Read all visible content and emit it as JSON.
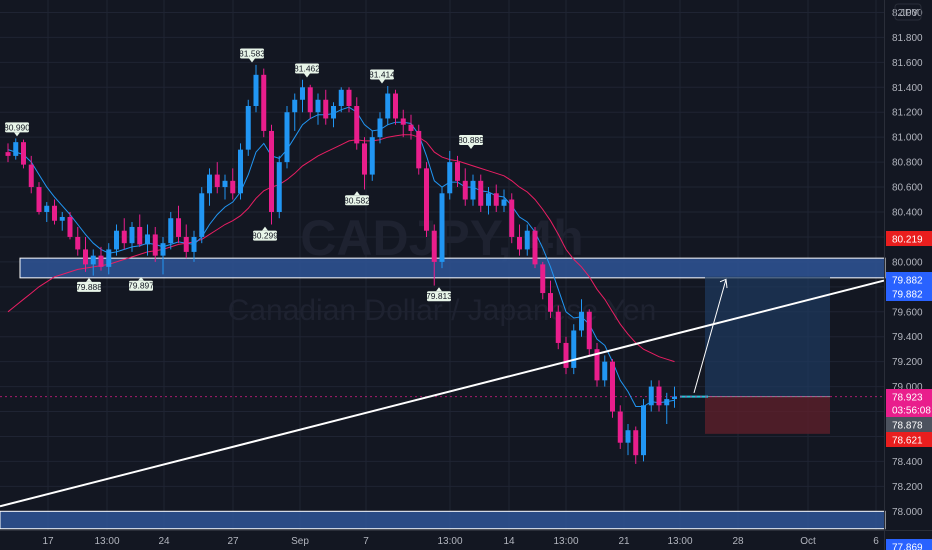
{
  "chart_data": {
    "type": "candlestick",
    "symbol_watermark": "CADJPY, 4h",
    "name_watermark": "Canadian Dollar / Japanese Yen",
    "currency": "JPY",
    "ylim": [
      77.85,
      82.1
    ],
    "x_ticks": [
      "17",
      "13:00",
      "24",
      "27",
      "Sep",
      "7",
      "13:00",
      "14",
      "13:00",
      "21",
      "13:00",
      "28",
      "Oct",
      "6"
    ],
    "y_ticks": [
      "82.000",
      "81.800",
      "81.600",
      "81.400",
      "81.200",
      "81.000",
      "80.800",
      "80.600",
      "80.400",
      "80.200",
      "80.000",
      "79.800",
      "79.600",
      "79.400",
      "79.200",
      "79.000",
      "78.800",
      "78.600",
      "78.400",
      "78.200",
      "78.000",
      "77.869"
    ],
    "colors": {
      "up": "#2196f3",
      "down": "#e91e8c",
      "bg": "#131722",
      "grid": "#1f2433",
      "zone": "#2f5597"
    },
    "pivots": [
      {
        "label": "80.990",
        "value": 80.99,
        "type": "high"
      },
      {
        "label": "79.888",
        "value": 79.888,
        "type": "low"
      },
      {
        "label": "79.897",
        "value": 79.897,
        "type": "low"
      },
      {
        "label": "80.299",
        "value": 80.299,
        "type": "low"
      },
      {
        "label": "81.583",
        "value": 81.583,
        "type": "high"
      },
      {
        "label": "81.462",
        "value": 81.462,
        "type": "high"
      },
      {
        "label": "80.582",
        "value": 80.582,
        "type": "low"
      },
      {
        "label": "81.414",
        "value": 81.414,
        "type": "high"
      },
      {
        "label": "79.813",
        "value": 79.813,
        "type": "low"
      },
      {
        "label": "80.889",
        "value": 80.889,
        "type": "high"
      }
    ],
    "price_badges": [
      {
        "label": "80.219",
        "value": 80.219,
        "color": "#e91e1e"
      },
      {
        "label": "79.882",
        "value": 79.882,
        "color": "#2962ff"
      },
      {
        "label": "79.882",
        "value": 79.882,
        "color": "#2962ff"
      },
      {
        "label": "78.923",
        "value": 78.923,
        "color": "#e91e8c"
      },
      {
        "label": "03:56:08",
        "value": 78.79,
        "color": "#e91e8c"
      },
      {
        "label": "78.878",
        "value": 78.878,
        "color": "#4c525e"
      },
      {
        "label": "78.621",
        "value": 78.621,
        "color": "#e91e1e"
      },
      {
        "label": "77.869",
        "value": 77.869,
        "color": "#2962ff"
      }
    ],
    "zones": [
      {
        "name": "resistance-zone",
        "y_top": 80.03,
        "y_bottom": 79.872
      },
      {
        "name": "support-zone",
        "y_top": 78.0,
        "y_bottom": 77.86
      }
    ],
    "trendline": {
      "y_start": 78.04,
      "y_end": 79.85
    },
    "position": {
      "entry": 78.92,
      "target": 79.882,
      "stop": 78.621
    },
    "candles": [
      [
        80.88,
        80.95,
        80.8,
        80.85
      ],
      [
        80.85,
        80.99,
        80.82,
        80.96
      ],
      [
        80.96,
        80.98,
        80.75,
        80.78
      ],
      [
        80.78,
        80.85,
        80.55,
        80.6
      ],
      [
        80.6,
        80.64,
        80.38,
        80.4
      ],
      [
        80.4,
        80.48,
        80.32,
        80.45
      ],
      [
        80.45,
        80.5,
        80.3,
        80.33
      ],
      [
        80.33,
        80.4,
        80.25,
        80.36
      ],
      [
        80.36,
        80.4,
        80.18,
        80.2
      ],
      [
        80.2,
        80.28,
        80.05,
        80.1
      ],
      [
        80.1,
        80.2,
        79.92,
        79.98
      ],
      [
        79.98,
        80.1,
        79.89,
        80.05
      ],
      [
        80.05,
        80.12,
        79.93,
        79.96
      ],
      [
        79.96,
        80.15,
        79.9,
        80.1
      ],
      [
        80.1,
        80.3,
        80.05,
        80.25
      ],
      [
        80.25,
        80.35,
        80.1,
        80.15
      ],
      [
        80.15,
        80.32,
        80.08,
        80.28
      ],
      [
        80.28,
        80.38,
        80.12,
        80.14
      ],
      [
        80.14,
        80.3,
        80.05,
        80.22
      ],
      [
        80.22,
        80.28,
        80.0,
        80.05
      ],
      [
        80.05,
        80.2,
        79.9,
        80.15
      ],
      [
        80.15,
        80.4,
        80.1,
        80.35
      ],
      [
        80.35,
        80.45,
        80.15,
        80.2
      ],
      [
        80.2,
        80.3,
        80.03,
        80.08
      ],
      [
        80.08,
        80.25,
        80.0,
        80.2
      ],
      [
        80.2,
        80.6,
        80.15,
        80.55
      ],
      [
        80.55,
        80.75,
        80.45,
        80.7
      ],
      [
        80.7,
        80.8,
        80.55,
        80.6
      ],
      [
        80.6,
        80.7,
        80.5,
        80.65
      ],
      [
        80.65,
        80.75,
        80.5,
        80.55
      ],
      [
        80.55,
        80.95,
        80.5,
        80.9
      ],
      [
        80.9,
        81.3,
        80.85,
        81.25
      ],
      [
        81.25,
        81.58,
        81.2,
        81.5
      ],
      [
        81.5,
        81.55,
        81.0,
        81.05
      ],
      [
        81.05,
        81.1,
        80.3,
        80.4
      ],
      [
        80.4,
        80.85,
        80.35,
        80.8
      ],
      [
        80.8,
        81.25,
        80.75,
        81.2
      ],
      [
        81.2,
        81.35,
        81.05,
        81.3
      ],
      [
        81.3,
        81.46,
        81.2,
        81.4
      ],
      [
        81.4,
        81.42,
        81.15,
        81.2
      ],
      [
        81.2,
        81.35,
        81.1,
        81.3
      ],
      [
        81.3,
        81.38,
        81.1,
        81.15
      ],
      [
        81.15,
        81.28,
        81.08,
        81.25
      ],
      [
        81.25,
        81.4,
        81.2,
        81.38
      ],
      [
        81.38,
        81.4,
        81.2,
        81.25
      ],
      [
        81.25,
        81.32,
        80.9,
        80.95
      ],
      [
        80.95,
        81.0,
        80.58,
        80.7
      ],
      [
        80.7,
        81.05,
        80.65,
        81.0
      ],
      [
        81.0,
        81.2,
        80.95,
        81.15
      ],
      [
        81.15,
        81.41,
        81.1,
        81.35
      ],
      [
        81.35,
        81.38,
        81.1,
        81.15
      ],
      [
        81.15,
        81.22,
        81.0,
        81.1
      ],
      [
        81.1,
        81.18,
        80.98,
        81.05
      ],
      [
        81.05,
        81.1,
        80.7,
        80.75
      ],
      [
        80.75,
        80.8,
        80.2,
        80.25
      ],
      [
        80.25,
        80.3,
        79.81,
        80.0
      ],
      [
        80.0,
        80.6,
        79.95,
        80.55
      ],
      [
        80.55,
        80.89,
        80.5,
        80.8
      ],
      [
        80.8,
        80.85,
        80.6,
        80.65
      ],
      [
        80.65,
        80.75,
        80.45,
        80.5
      ],
      [
        80.5,
        80.7,
        80.45,
        80.65
      ],
      [
        80.65,
        80.7,
        80.4,
        80.45
      ],
      [
        80.45,
        80.6,
        80.38,
        80.55
      ],
      [
        80.55,
        80.62,
        80.4,
        80.45
      ],
      [
        80.45,
        80.58,
        80.4,
        80.5
      ],
      [
        80.5,
        80.55,
        80.15,
        80.2
      ],
      [
        80.2,
        80.3,
        80.05,
        80.1
      ],
      [
        80.1,
        80.3,
        80.05,
        80.25
      ],
      [
        80.25,
        80.28,
        79.95,
        79.98
      ],
      [
        79.98,
        80.0,
        79.7,
        79.75
      ],
      [
        79.75,
        79.85,
        79.55,
        79.6
      ],
      [
        79.6,
        79.65,
        79.3,
        79.35
      ],
      [
        79.35,
        79.4,
        79.1,
        79.15
      ],
      [
        79.15,
        79.5,
        79.1,
        79.45
      ],
      [
        79.45,
        79.7,
        79.4,
        79.6
      ],
      [
        79.6,
        79.62,
        79.25,
        79.3
      ],
      [
        79.3,
        79.35,
        79.0,
        79.05
      ],
      [
        79.05,
        79.25,
        79.0,
        79.2
      ],
      [
        79.2,
        79.22,
        78.75,
        78.8
      ],
      [
        78.8,
        78.85,
        78.5,
        78.55
      ],
      [
        78.55,
        78.7,
        78.45,
        78.65
      ],
      [
        78.65,
        78.68,
        78.38,
        78.45
      ],
      [
        78.45,
        78.9,
        78.4,
        78.85
      ],
      [
        78.85,
        79.05,
        78.8,
        79.0
      ],
      [
        79.0,
        79.05,
        78.8,
        78.85
      ],
      [
        78.85,
        78.95,
        78.7,
        78.9
      ],
      [
        78.9,
        79.0,
        78.83,
        78.92
      ]
    ],
    "ema_fast": [
      80.9,
      80.88,
      80.86,
      80.8,
      80.7,
      80.6,
      80.52,
      80.45,
      80.38,
      80.3,
      80.22,
      80.15,
      80.1,
      80.07,
      80.08,
      80.1,
      80.12,
      80.13,
      80.15,
      80.14,
      80.12,
      80.14,
      80.16,
      80.15,
      80.14,
      80.2,
      80.3,
      80.38,
      80.44,
      80.48,
      80.56,
      80.7,
      80.88,
      80.95,
      80.85,
      80.83,
      80.9,
      81.0,
      81.1,
      81.15,
      81.18,
      81.18,
      81.19,
      81.22,
      81.24,
      81.2,
      81.1,
      81.05,
      81.06,
      81.1,
      81.12,
      81.12,
      81.11,
      81.02,
      80.85,
      80.65,
      80.6,
      80.64,
      80.64,
      80.6,
      80.6,
      80.57,
      80.56,
      80.53,
      80.52,
      80.45,
      80.36,
      80.32,
      80.24,
      80.11,
      79.96,
      79.78,
      79.6,
      79.55,
      79.56,
      79.5,
      79.38,
      79.33,
      79.2,
      79.05,
      78.96,
      78.84,
      78.84,
      78.88,
      78.87,
      78.88,
      78.89
    ],
    "ema_slow": [
      79.6,
      79.65,
      79.7,
      79.75,
      79.8,
      79.84,
      79.88,
      79.9,
      79.92,
      79.94,
      79.95,
      79.96,
      79.97,
      79.98,
      80.0,
      80.02,
      80.04,
      80.06,
      80.08,
      80.09,
      80.1,
      80.12,
      80.14,
      80.15,
      80.16,
      80.18,
      80.22,
      80.26,
      80.3,
      80.33,
      80.37,
      80.43,
      80.51,
      80.57,
      80.6,
      80.62,
      80.66,
      80.71,
      80.77,
      80.81,
      80.85,
      80.88,
      80.91,
      80.94,
      80.97,
      80.98,
      80.97,
      80.97,
      80.98,
      81.0,
      81.01,
      81.02,
      81.02,
      81.0,
      80.96,
      80.88,
      80.84,
      80.82,
      80.81,
      80.79,
      80.77,
      80.75,
      80.73,
      80.71,
      80.69,
      80.65,
      80.6,
      80.56,
      80.5,
      80.42,
      80.33,
      80.22,
      80.1,
      80.02,
      79.96,
      79.88,
      79.78,
      79.7,
      79.6,
      79.5,
      79.42,
      79.35,
      79.3,
      79.27,
      79.24,
      79.22,
      79.2
    ]
  }
}
